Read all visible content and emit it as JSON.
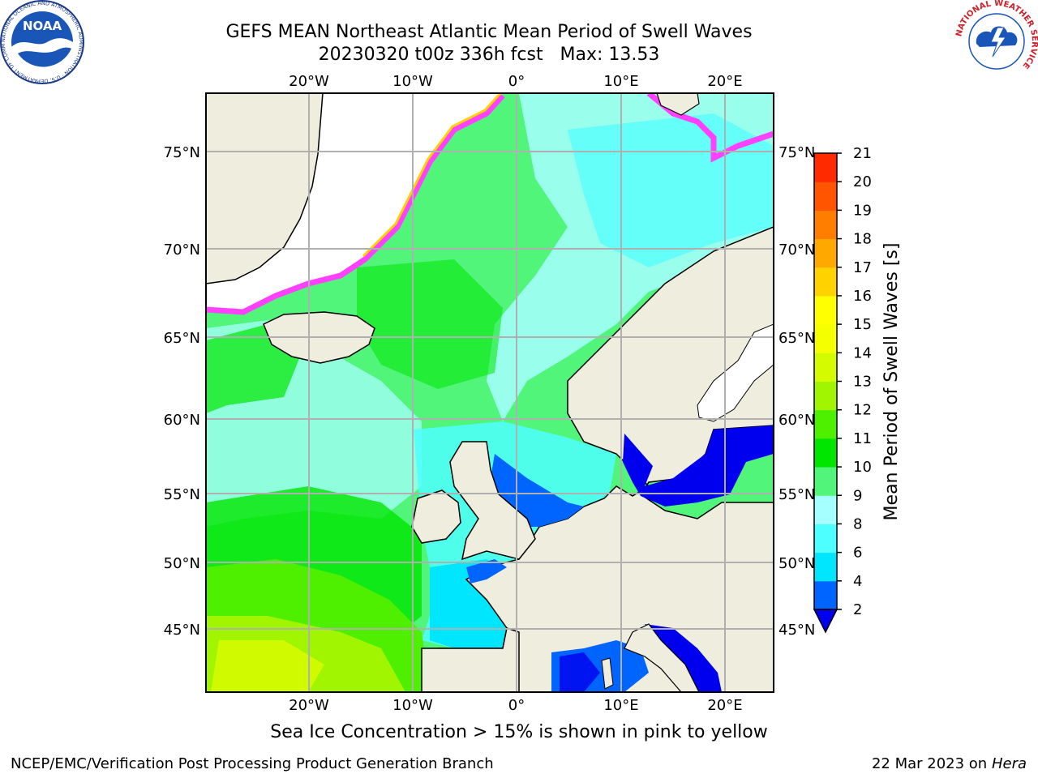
{
  "header": {
    "title": "GEFS MEAN Northeast Atlantic Mean Period of Swell Waves",
    "subtitle": "20230320 t00z 336h fcst   Max: 13.53"
  },
  "map": {
    "lon_labels": [
      "20°W",
      "10°W",
      "0°",
      "10°E",
      "20°E"
    ],
    "lat_labels": [
      "75°N",
      "70°N",
      "65°N",
      "60°N",
      "55°N",
      "50°N",
      "45°N"
    ],
    "colors": {
      "land": "#efedde",
      "ice_free_white": "#ffffff",
      "grid": "#b0b0b0"
    }
  },
  "colorbar": {
    "label": "Mean Period of Swell Waves [s]",
    "ticks": [
      "2",
      "4",
      "6",
      "8",
      "9",
      "10",
      "11",
      "12",
      "13",
      "14",
      "15",
      "16",
      "17",
      "18",
      "19",
      "20",
      "21"
    ],
    "colors": [
      "#0064ff",
      "#00e6ff",
      "#4dffff",
      "#a6ffff",
      "#50f57a",
      "#00e600",
      "#4ef000",
      "#a2f500",
      "#d4fb00",
      "#f5ff00",
      "#ffff00",
      "#ffd200",
      "#ffa800",
      "#ff7e00",
      "#ff5400",
      "#ff2a00"
    ],
    "under_color": "#0000ee"
  },
  "footer": {
    "note": "Sea Ice Concentration > 15% is shown in pink to yellow",
    "credit": "NCEP/EMC/Verification Post Processing Product Generation Branch",
    "date": "22 Mar 2023 on",
    "machine": "Hera"
  },
  "logos": {
    "noaa": "NOAA",
    "noaa_ring": "NATIONAL OCEANIC AND ATMOSPHERIC ADMINISTRATION · U.S. DEPARTMENT OF COMMERCE",
    "nws_ring": "NATIONAL WEATHER SERVICE"
  }
}
